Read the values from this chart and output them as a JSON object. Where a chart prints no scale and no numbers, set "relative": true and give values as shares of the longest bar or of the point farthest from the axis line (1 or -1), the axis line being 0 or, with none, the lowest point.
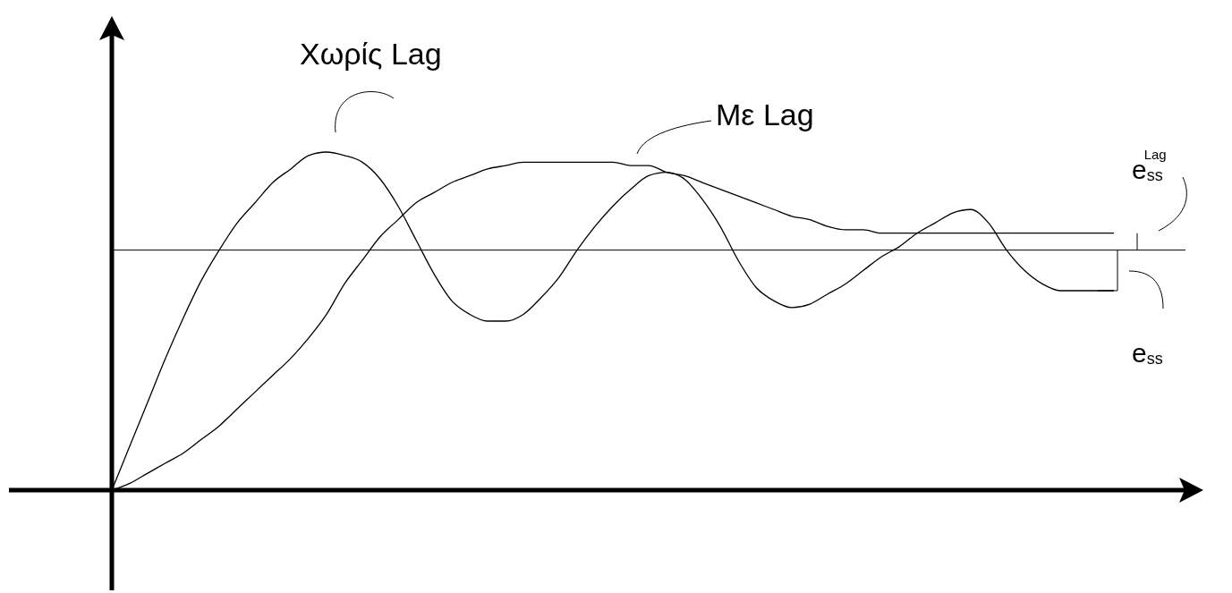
{
  "chart_data": {
    "type": "line",
    "relative": true,
    "grid": false,
    "categories": [
      null,
      null,
      null,
      null,
      null,
      null,
      null,
      null,
      null,
      null,
      null,
      null,
      null,
      null,
      null,
      null,
      null,
      null,
      null,
      null,
      null,
      null,
      null,
      null,
      null,
      null,
      null,
      null,
      null,
      null,
      null,
      null,
      null,
      null,
      null,
      null,
      null,
      null,
      null,
      null,
      null,
      null,
      null,
      null,
      null,
      null,
      null,
      null,
      null,
      null,
      null,
      null,
      null,
      null,
      null,
      null,
      null
    ],
    "series": [
      {
        "name": "Χωρίς Lag",
        "color": "#000000",
        "values": [
          0,
          0.13,
          0.26,
          0.39,
          0.51,
          0.62,
          0.71,
          0.79,
          0.85,
          0.91,
          0.95,
          0.99,
          1.0,
          0.99,
          0.97,
          0.92,
          0.84,
          0.74,
          0.64,
          0.56,
          0.52,
          0.5,
          0.5,
          0.52,
          0.57,
          0.63,
          0.71,
          0.78,
          0.84,
          0.89,
          0.93,
          0.94,
          0.92,
          0.86,
          0.78,
          0.68,
          0.6,
          0.56,
          0.54,
          0.55,
          0.58,
          0.61,
          0.65,
          0.69,
          0.72,
          0.76,
          0.79,
          0.82,
          0.83,
          0.79,
          0.71,
          0.65,
          0.61,
          0.59,
          0.59,
          0.59,
          0.59
        ]
      },
      {
        "name": "Με Lag",
        "color": "#000000",
        "values": [
          0,
          0.02,
          0.05,
          0.08,
          0.11,
          0.15,
          0.19,
          0.24,
          0.29,
          0.34,
          0.39,
          0.45,
          0.52,
          0.61,
          0.68,
          0.75,
          0.8,
          0.85,
          0.88,
          0.91,
          0.93,
          0.95,
          0.96,
          0.97,
          0.97,
          0.97,
          0.97,
          0.97,
          0.97,
          0.96,
          0.96,
          0.94,
          0.93,
          0.91,
          0.89,
          0.87,
          0.85,
          0.83,
          0.81,
          0.8,
          0.78,
          0.77,
          0.77,
          0.76,
          0.76,
          0.76,
          0.76,
          0.76,
          0.76,
          0.76,
          0.76,
          0.76,
          0.76,
          0.76,
          0.76,
          0.76,
          0.76
        ]
      }
    ],
    "ref_lines": [
      {
        "axis": "y",
        "value": 0.71,
        "color": "#000000"
      }
    ],
    "annotations": [
      "e$_{ss}$$^{Lag}$",
      "e$_{ss}$"
    ]
  }
}
